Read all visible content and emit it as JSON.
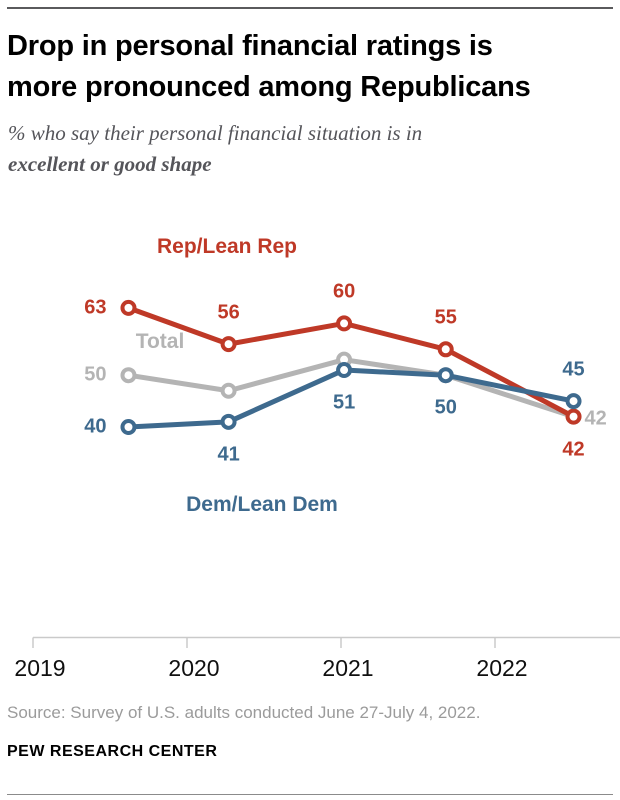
{
  "header": {
    "title": "Drop in personal financial ratings is\nmore pronounced among Republicans",
    "subtitle_line1": "% who say their personal financial situation is in",
    "subtitle_line2": "excellent or good shape"
  },
  "chart_data": {
    "type": "line",
    "title": "Drop in personal financial ratings is more pronounced among Republicans",
    "subtitle": "% who say their personal financial situation is in excellent or good shape",
    "x_unit": "survey date (year fraction)",
    "x": [
      2019.62,
      2020.27,
      2021.02,
      2021.68,
      2022.51
    ],
    "x_ticks": [
      2019,
      2020,
      2021,
      2022
    ],
    "x_tick_labels": [
      "2019",
      "2020",
      "2021",
      "2022"
    ],
    "xlim": [
      2019,
      2022.85
    ],
    "ylim": [
      37,
      67
    ],
    "grid": "off",
    "marker_style": "open-circle",
    "legend_position": "inline-annotations",
    "axis_color": "#cacaca",
    "series": [
      {
        "name": "Total",
        "color": "#b4b4b4",
        "values": [
          50,
          47,
          53,
          50,
          42
        ],
        "point_labels": [
          "50",
          "",
          "",
          "",
          "42"
        ],
        "label_placement": [
          "left",
          "",
          "",
          "",
          "right"
        ]
      },
      {
        "name": "Rep/Lean Rep",
        "color": "#bf3927",
        "values": [
          63,
          56,
          60,
          55,
          42
        ],
        "point_labels": [
          "63",
          "56",
          "60",
          "55",
          "42"
        ],
        "label_placement": [
          "left",
          "above",
          "above",
          "above",
          "below"
        ]
      },
      {
        "name": "Dem/Lean Dem",
        "color": "#3e6a8e",
        "values": [
          40,
          41,
          51,
          50,
          45
        ],
        "point_labels": [
          "40",
          "41",
          "51",
          "50",
          "45"
        ],
        "label_placement": [
          "left",
          "below",
          "below",
          "below",
          "above"
        ]
      }
    ],
    "series_annotations": [
      {
        "text": "Rep/Lean Rep",
        "color": "#bf3927",
        "x": 227,
        "y": 247
      },
      {
        "text": "Total",
        "color": "#b4b4b4",
        "x": 160,
        "y": 342
      },
      {
        "text": "Dem/Lean Dem",
        "color": "#3e6a8e",
        "x": 262,
        "y": 505
      }
    ]
  },
  "footer": {
    "source": "Source: Survey of U.S. adults conducted June 27-July 4, 2022.",
    "brand": "PEW RESEARCH CENTER"
  }
}
